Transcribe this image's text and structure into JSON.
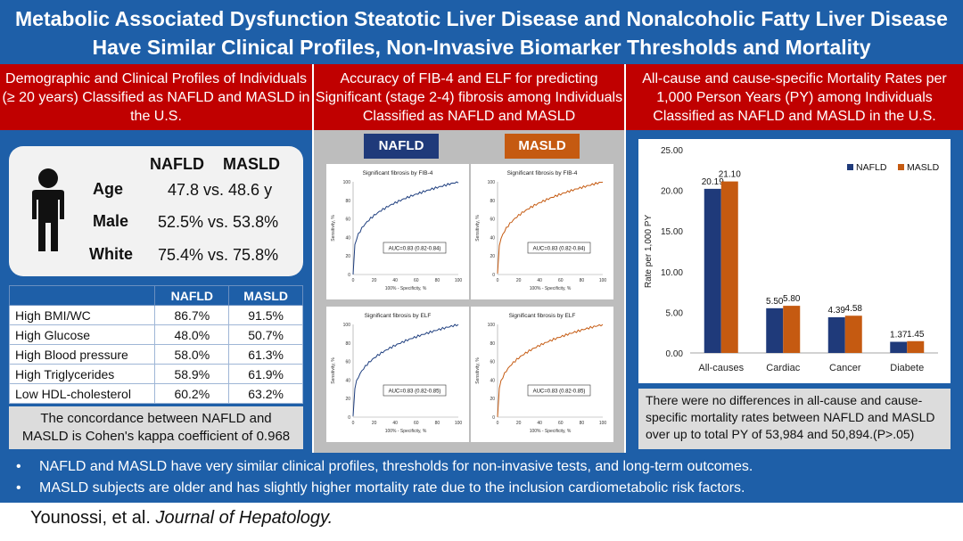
{
  "title": {
    "line1": "Metabolic Associated Dysfunction Steatotic Liver Disease and Nonalcoholic Fatty Liver Disease",
    "line2": "Have Similar Clinical Profiles, Non-Invasive Biomarker Thresholds and Mortality"
  },
  "panel1": {
    "heading": "Demographic and Clinical Profiles of Individuals (≥ 20 years) Classified as NAFLD and MASLD in the U.S.",
    "profile": {
      "col_nafld": "NAFLD",
      "col_masld": "MASLD",
      "rows": [
        {
          "label": "Age",
          "value": "47.8 vs. 48.6 y"
        },
        {
          "label": "Male",
          "value": "52.5% vs. 53.8%"
        },
        {
          "label": "White",
          "value": "75.4% vs. 75.8%"
        }
      ]
    },
    "table": {
      "headers": [
        "",
        "NAFLD",
        "MASLD"
      ],
      "rows": [
        [
          "High BMI/WC",
          "86.7%",
          "91.5%"
        ],
        [
          "High Glucose",
          "48.0%",
          "50.7%"
        ],
        [
          "High Blood pressure",
          "58.0%",
          "61.3%"
        ],
        [
          "High Triglycerides",
          "58.9%",
          "61.9%"
        ],
        [
          "Low HDL-cholesterol",
          "60.2%",
          "63.2%"
        ]
      ]
    },
    "kappa_line1": "The concordance between NAFLD and",
    "kappa_line2": "MASLD is Cohen's kappa coefficient of 0.968"
  },
  "panel2": {
    "heading": "Accuracy of FIB-4 and ELF for predicting Significant (stage 2-4) fibrosis among Individuals Classified as NAFLD and MASLD",
    "tag_nafld": "NAFLD",
    "tag_masld": "MASLD",
    "nafld_color": "#1f3f7f",
    "masld_color": "#c55a11",
    "tag_nafld_bg": "#1f3a7a",
    "tag_masld_bg": "#c55a11",
    "x_label": "100% - Specificity, %",
    "y_label": "Sensitivity, %",
    "ticks": [
      "0",
      "20",
      "40",
      "60",
      "80",
      "100"
    ],
    "plots": [
      {
        "title": "Significant fibrosis by FIB-4",
        "auc": "AUC=0.83 (0.82-0.84)",
        "group": "nafld"
      },
      {
        "title": "Significant fibrosis by FIB-4",
        "auc": "AUC=0.83 (0.82-0.84)",
        "group": "masld"
      },
      {
        "title": "Significant fibrosis by ELF",
        "auc": "AUC=0.83 (0.82-0.85)",
        "group": "nafld"
      },
      {
        "title": "Significant fibrosis by ELF",
        "auc": "AUC=0.83 (0.82-0.85)",
        "group": "masld"
      }
    ]
  },
  "panel3": {
    "heading": "All-cause and cause-specific Mortality Rates per 1,000 Person Years (PY) among Individuals Classified as NAFLD and MASLD in the U.S.",
    "note": "There were no differences in all-cause and cause-specific mortality rates between NAFLD and MASLD over up to total PY of 53,984 and 50,894.(P>.05)"
  },
  "chart_data": {
    "type": "bar",
    "title": "",
    "categories": [
      "All-causes",
      "Cardiac",
      "Cancer",
      "Diabete"
    ],
    "series": [
      {
        "name": "NAFLD",
        "values": [
          20.19,
          5.5,
          4.39,
          1.37
        ],
        "labels": [
          "20.19",
          "5.50",
          "4.39",
          "1.37"
        ],
        "color": "#1f3a7a"
      },
      {
        "name": "MASLD",
        "values": [
          21.1,
          5.8,
          4.58,
          1.45
        ],
        "labels": [
          "21.10",
          "5.80",
          "4.58",
          "1.45"
        ],
        "color": "#c55a11"
      }
    ],
    "ylabel": "Rate per 1,000 PY",
    "xlabel": "",
    "ylim": [
      0,
      25
    ],
    "yticks": [
      "0.00",
      "5.00",
      "10.00",
      "15.00",
      "20.00",
      "25.00"
    ],
    "legend": "top-right"
  },
  "bottom": {
    "bullet1": "NAFLD and MASLD have very similar clinical profiles, thresholds for non-invasive tests, and long-term outcomes.",
    "bullet2": "MASLD subjects are older and has slightly higher mortality rate due to the inclusion cardiometabolic risk factors."
  },
  "citation": {
    "authors": "Younossi, et al.",
    "journal": "Journal of Hepatology."
  }
}
